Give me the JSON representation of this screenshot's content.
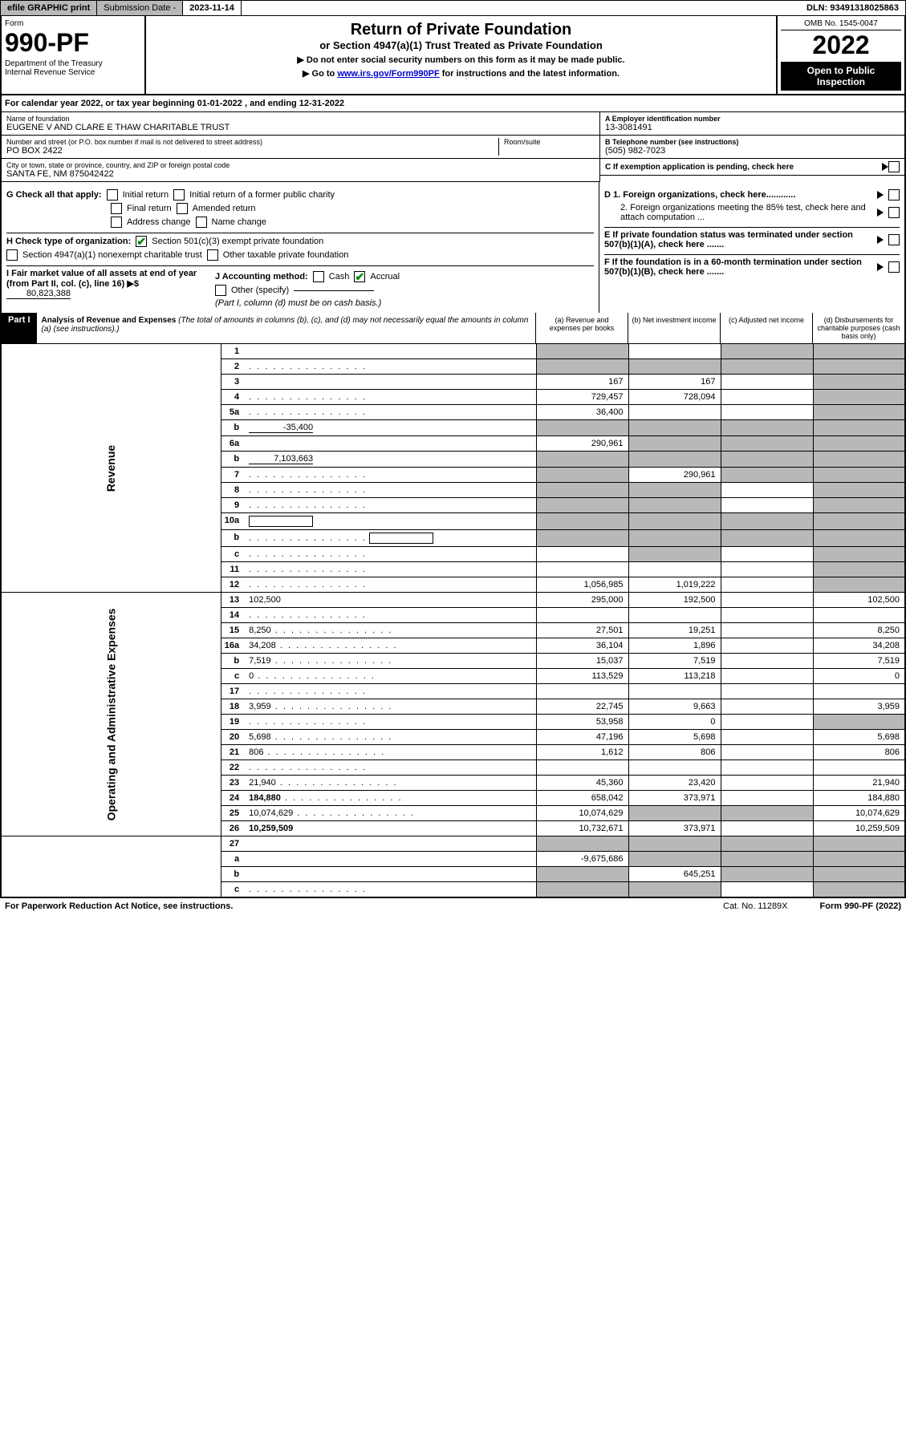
{
  "topbar": {
    "efile": "efile GRAPHIC print",
    "subdate_label": "Submission Date - ",
    "subdate": "2023-11-14",
    "dln": "DLN: 93491318025863"
  },
  "header": {
    "form_label": "Form",
    "form_num": "990-PF",
    "dept": "Department of the Treasury\nInternal Revenue Service",
    "title": "Return of Private Foundation",
    "subtitle": "or Section 4947(a)(1) Trust Treated as Private Foundation",
    "note1": "▶ Do not enter social security numbers on this form as it may be made public.",
    "note2_pre": "▶ Go to ",
    "note2_link": "www.irs.gov/Form990PF",
    "note2_post": " for instructions and the latest information.",
    "omb": "OMB No. 1545-0047",
    "year": "2022",
    "open": "Open to Public Inspection"
  },
  "calyear": "For calendar year 2022, or tax year beginning 01-01-2022              , and ending 12-31-2022",
  "info": {
    "name_label": "Name of foundation",
    "name": "EUGENE V AND CLARE E THAW CHARITABLE TRUST",
    "addr_label": "Number and street (or P.O. box number if mail is not delivered to street address)",
    "addr": "PO BOX 2422",
    "room_label": "Room/suite",
    "city_label": "City or town, state or province, country, and ZIP or foreign postal code",
    "city": "SANTA FE, NM  875042422",
    "a_label": "A Employer identification number",
    "a_val": "13-3081491",
    "b_label": "B Telephone number (see instructions)",
    "b_val": "(505) 982-7023",
    "c_label": "C If exemption application is pending, check here",
    "d1": "D 1. Foreign organizations, check here............",
    "d2": "2. Foreign organizations meeting the 85% test, check here and attach computation ...",
    "e": "E  If private foundation status was terminated under section 507(b)(1)(A), check here .......",
    "f": "F  If the foundation is in a 60-month termination under section 507(b)(1)(B), check here .......",
    "g_label": "G Check all that apply:",
    "g_opts": [
      "Initial return",
      "Initial return of a former public charity",
      "Final return",
      "Amended return",
      "Address change",
      "Name change"
    ],
    "h_label": "H Check type of organization:",
    "h_opts": [
      "Section 501(c)(3) exempt private foundation",
      "Section 4947(a)(1) nonexempt charitable trust",
      "Other taxable private foundation"
    ],
    "i_label": "I Fair market value of all assets at end of year (from Part II, col. (c), line 16) ▶$",
    "i_val": "80,823,388",
    "j_label": "J Accounting method:",
    "j_opts": [
      "Cash",
      "Accrual",
      "Other (specify)"
    ],
    "j_note": "(Part I, column (d) must be on cash basis.)"
  },
  "part1": {
    "label": "Part I",
    "title": "Analysis of Revenue and Expenses",
    "note": "(The total of amounts in columns (b), (c), and (d) may not necessarily equal the amounts in column (a) (see instructions).)",
    "cols": [
      "(a)   Revenue and expenses per books",
      "(b)   Net investment income",
      "(c)   Adjusted net income",
      "(d)   Disbursements for charitable purposes (cash basis only)"
    ]
  },
  "sections": {
    "revenue": "Revenue",
    "expenses": "Operating and Administrative Expenses"
  },
  "lines": [
    {
      "n": "1",
      "d": "",
      "a": "",
      "b": "",
      "c": "",
      "sa": true,
      "sc": true,
      "sd": true
    },
    {
      "n": "2",
      "d": "",
      "a": "",
      "b": "",
      "c": "",
      "sa": true,
      "sb": true,
      "sc": true,
      "sd": true,
      "dots": true
    },
    {
      "n": "3",
      "d": "",
      "a": "167",
      "b": "167",
      "c": "",
      "sd": true
    },
    {
      "n": "4",
      "d": "",
      "a": "729,457",
      "b": "728,094",
      "c": "",
      "sd": true,
      "dots": true
    },
    {
      "n": "5a",
      "d": "",
      "a": "36,400",
      "b": "",
      "c": "",
      "sd": true,
      "dots": true
    },
    {
      "n": "b",
      "d": "",
      "a": "",
      "b": "",
      "c": "",
      "sa": true,
      "sb": true,
      "sc": true,
      "sd": true,
      "inline": "-35,400"
    },
    {
      "n": "6a",
      "d": "",
      "a": "290,961",
      "b": "",
      "c": "",
      "sb": true,
      "sc": true,
      "sd": true
    },
    {
      "n": "b",
      "d": "",
      "a": "",
      "b": "",
      "c": "",
      "sa": true,
      "sb": true,
      "sc": true,
      "sd": true,
      "inline": "7,103,663"
    },
    {
      "n": "7",
      "d": "",
      "a": "",
      "b": "290,961",
      "c": "",
      "sa": true,
      "sc": true,
      "sd": true,
      "dots": true
    },
    {
      "n": "8",
      "d": "",
      "a": "",
      "b": "",
      "c": "",
      "sa": true,
      "sb": true,
      "sd": true,
      "dots": true
    },
    {
      "n": "9",
      "d": "",
      "a": "",
      "b": "",
      "c": "",
      "sa": true,
      "sb": true,
      "sd": true,
      "dots": true
    },
    {
      "n": "10a",
      "d": "",
      "a": "",
      "b": "",
      "c": "",
      "sa": true,
      "sb": true,
      "sc": true,
      "sd": true,
      "box": true
    },
    {
      "n": "b",
      "d": "",
      "a": "",
      "b": "",
      "c": "",
      "sa": true,
      "sb": true,
      "sc": true,
      "sd": true,
      "box": true,
      "dots": true
    },
    {
      "n": "c",
      "d": "",
      "a": "",
      "b": "",
      "c": "",
      "sb": true,
      "sd": true,
      "dots": true
    },
    {
      "n": "11",
      "d": "",
      "a": "",
      "b": "",
      "c": "",
      "sd": true,
      "dots": true
    },
    {
      "n": "12",
      "d": "",
      "a": "1,056,985",
      "b": "1,019,222",
      "c": "",
      "sd": true,
      "bold": true,
      "dots": true
    }
  ],
  "exp_lines": [
    {
      "n": "13",
      "d": "102,500",
      "a": "295,000",
      "b": "192,500",
      "c": ""
    },
    {
      "n": "14",
      "d": "",
      "a": "",
      "b": "",
      "c": "",
      "dots": true
    },
    {
      "n": "15",
      "d": "8,250",
      "a": "27,501",
      "b": "19,251",
      "c": "",
      "dots": true
    },
    {
      "n": "16a",
      "d": "34,208",
      "a": "36,104",
      "b": "1,896",
      "c": "",
      "dots": true
    },
    {
      "n": "b",
      "d": "7,519",
      "a": "15,037",
      "b": "7,519",
      "c": "",
      "dots": true
    },
    {
      "n": "c",
      "d": "0",
      "a": "113,529",
      "b": "113,218",
      "c": "",
      "dots": true
    },
    {
      "n": "17",
      "d": "",
      "a": "",
      "b": "",
      "c": "",
      "dots": true
    },
    {
      "n": "18",
      "d": "3,959",
      "a": "22,745",
      "b": "9,663",
      "c": "",
      "dots": true
    },
    {
      "n": "19",
      "d": "",
      "a": "53,958",
      "b": "0",
      "c": "",
      "sd": true,
      "dots": true
    },
    {
      "n": "20",
      "d": "5,698",
      "a": "47,196",
      "b": "5,698",
      "c": "",
      "dots": true
    },
    {
      "n": "21",
      "d": "806",
      "a": "1,612",
      "b": "806",
      "c": "",
      "dots": true
    },
    {
      "n": "22",
      "d": "",
      "a": "",
      "b": "",
      "c": "",
      "dots": true
    },
    {
      "n": "23",
      "d": "21,940",
      "a": "45,360",
      "b": "23,420",
      "c": "",
      "dots": true
    },
    {
      "n": "24",
      "d": "184,880",
      "a": "658,042",
      "b": "373,971",
      "c": "",
      "bold": true,
      "dots": true
    },
    {
      "n": "25",
      "d": "10,074,629",
      "a": "10,074,629",
      "b": "",
      "c": "",
      "sb": true,
      "sc": true,
      "dots": true
    },
    {
      "n": "26",
      "d": "10,259,509",
      "a": "10,732,671",
      "b": "373,971",
      "c": "",
      "bold": true
    }
  ],
  "bottom_lines": [
    {
      "n": "27",
      "d": "",
      "a": "",
      "b": "",
      "c": "",
      "sa": true,
      "sb": true,
      "sc": true,
      "sd": true
    },
    {
      "n": "a",
      "d": "",
      "a": "-9,675,686",
      "b": "",
      "c": "",
      "sb": true,
      "sc": true,
      "sd": true,
      "bold": true
    },
    {
      "n": "b",
      "d": "",
      "a": "",
      "b": "645,251",
      "c": "",
      "sa": true,
      "sc": true,
      "sd": true,
      "bold": true
    },
    {
      "n": "c",
      "d": "",
      "a": "",
      "b": "",
      "c": "",
      "sa": true,
      "sb": true,
      "sd": true,
      "bold": true,
      "dots": true
    }
  ],
  "footer": {
    "paperwork": "For Paperwork Reduction Act Notice, see instructions.",
    "cat": "Cat. No. 11289X",
    "form": "Form 990-PF (2022)"
  }
}
